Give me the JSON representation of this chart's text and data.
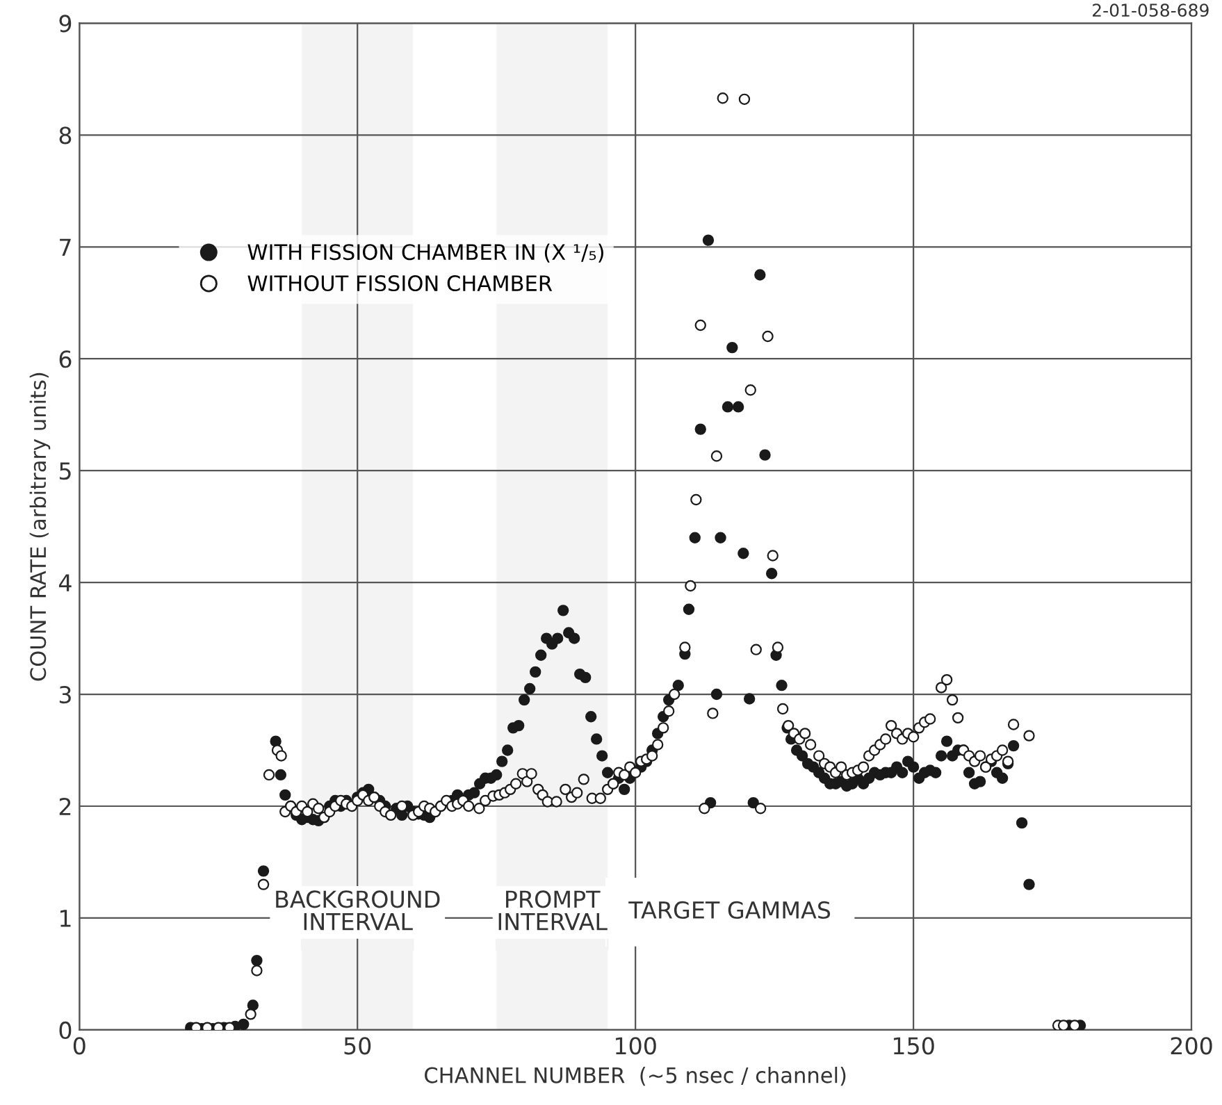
{
  "chart_data": {
    "type": "scatter",
    "xlabel": "CHANNEL NUMBER  (~5 nsec / channel)",
    "ylabel": "COUNT RATE (arbitrary units)",
    "xlim": [
      0,
      200
    ],
    "xticks": [
      0,
      50,
      100,
      150,
      200
    ],
    "ylim": [
      0,
      9
    ],
    "yticks": [
      0,
      1,
      2,
      3,
      4,
      5,
      6,
      7,
      8,
      9
    ],
    "grid": true,
    "legend": "top left",
    "marker": "circle",
    "series": [
      {
        "name": "WITH FISSION CHAMBER IN (X ¹/₅)",
        "color": "#1a1a1a",
        "x": [
          20,
          22,
          24,
          26,
          28,
          29.5,
          31.2,
          31.9,
          33.1,
          35.3,
          36.2,
          37,
          38,
          39,
          40,
          41,
          42,
          43,
          44,
          45,
          46,
          47,
          48,
          50,
          51,
          52,
          53,
          54,
          55,
          57,
          58,
          59,
          60,
          61,
          62,
          63,
          64,
          65,
          67,
          68,
          70,
          71,
          72,
          73,
          74,
          75,
          76,
          77,
          78,
          79,
          80,
          81,
          82,
          83,
          84,
          85,
          86,
          87,
          88,
          89,
          90,
          91,
          92,
          93,
          94,
          95,
          96,
          97,
          98,
          99,
          101,
          102,
          103,
          104,
          105,
          106,
          107.7,
          108.9,
          109.6,
          110.7,
          111.7,
          113.1,
          113.5,
          114.6,
          115.3,
          116.6,
          117.4,
          118.5,
          119.4,
          120.5,
          121.2,
          122.4,
          123.3,
          124.5,
          125.3,
          126.3,
          127.3,
          128,
          129,
          130,
          131,
          132,
          133,
          134,
          135,
          136,
          137,
          138,
          139,
          140,
          141,
          142,
          143,
          144,
          145,
          146,
          147,
          148,
          149,
          150,
          151,
          152,
          153,
          154,
          155,
          156,
          157,
          158,
          159,
          160,
          161,
          162,
          163,
          164,
          165,
          166,
          167,
          168,
          169.5,
          170.8,
          178,
          180
        ],
        "values": [
          0.02,
          0.01,
          0.01,
          0.02,
          0.03,
          0.05,
          0.22,
          0.62,
          1.42,
          2.58,
          2.28,
          2.1,
          2.0,
          1.92,
          1.88,
          1.9,
          1.88,
          1.87,
          1.9,
          2.0,
          2.05,
          2.0,
          2.05,
          2.08,
          2.12,
          2.15,
          2.08,
          2.05,
          2.0,
          1.98,
          1.92,
          2.0,
          1.95,
          1.93,
          1.92,
          1.9,
          1.95,
          2.0,
          2.05,
          2.1,
          2.1,
          2.12,
          2.2,
          2.25,
          2.25,
          2.28,
          2.4,
          2.5,
          2.7,
          2.72,
          2.95,
          3.05,
          3.2,
          3.35,
          3.5,
          3.45,
          3.5,
          3.75,
          3.55,
          3.5,
          3.18,
          3.15,
          2.8,
          2.6,
          2.45,
          2.3,
          2.2,
          2.25,
          2.15,
          2.25,
          2.35,
          2.4,
          2.5,
          2.65,
          2.8,
          2.95,
          3.08,
          3.36,
          3.76,
          4.4,
          5.37,
          7.06,
          2.03,
          3.0,
          4.4,
          5.57,
          6.1,
          5.57,
          4.26,
          2.96,
          2.03,
          6.75,
          5.14,
          4.08,
          3.35,
          3.08,
          2.7,
          2.6,
          2.5,
          2.45,
          2.38,
          2.35,
          2.3,
          2.25,
          2.2,
          2.2,
          2.22,
          2.18,
          2.2,
          2.25,
          2.2,
          2.25,
          2.3,
          2.28,
          2.3,
          2.3,
          2.35,
          2.3,
          2.4,
          2.35,
          2.25,
          2.3,
          2.32,
          2.3,
          2.45,
          2.58,
          2.45,
          2.5,
          2.5,
          2.3,
          2.2,
          2.22,
          2.35,
          2.4,
          2.3,
          2.25,
          2.38,
          2.54,
          1.85,
          1.3,
          0.04,
          0.04
        ]
      },
      {
        "name": "WITHOUT FISSION CHAMBER",
        "color": "#ffffff",
        "x": [
          21,
          23,
          25,
          27,
          30.8,
          31.9,
          33.1,
          34.1,
          35.6,
          36.3,
          37,
          38,
          39,
          40,
          41,
          42,
          43,
          44,
          45,
          46,
          47,
          48,
          49,
          50,
          51,
          52,
          53,
          54,
          55,
          56,
          58,
          60,
          61,
          62,
          63,
          64,
          65,
          66,
          67,
          68,
          69,
          70,
          71.9,
          73,
          74.4,
          75.5,
          76.5,
          77.5,
          78.5,
          79.7,
          80.5,
          81.3,
          82.5,
          83.3,
          84.2,
          85.8,
          87.4,
          88.5,
          89.5,
          90.7,
          92.2,
          93.7,
          95,
          96,
          97,
          98,
          99,
          100,
          101,
          102,
          103,
          104,
          105,
          106,
          107,
          108.9,
          109.9,
          110.9,
          111.7,
          112.4,
          113.9,
          114.6,
          115.7,
          119.6,
          120.7,
          121.7,
          122.5,
          123.8,
          124.7,
          125.6,
          126.5,
          127.5,
          128.5,
          129.5,
          130.5,
          131.5,
          133,
          134,
          135,
          136,
          137,
          138,
          139,
          140,
          141,
          142,
          143,
          144,
          145,
          146,
          147,
          148,
          149,
          150,
          151,
          152,
          153,
          155,
          156,
          157,
          158,
          159,
          160,
          161,
          162,
          163,
          164,
          165,
          166,
          167,
          168,
          170.8,
          176,
          177,
          179
        ],
        "values": [
          0.02,
          0.02,
          0.02,
          0.02,
          0.14,
          0.53,
          1.3,
          2.28,
          2.5,
          2.45,
          1.95,
          2.0,
          1.95,
          2.0,
          1.95,
          2.02,
          1.98,
          1.9,
          1.95,
          2.0,
          2.05,
          2.02,
          2.0,
          2.05,
          2.1,
          2.05,
          2.08,
          2.0,
          1.95,
          1.92,
          2.0,
          1.92,
          1.95,
          2.0,
          1.98,
          1.95,
          2.0,
          2.05,
          2.0,
          2.02,
          2.05,
          2.0,
          1.98,
          2.05,
          2.09,
          2.1,
          2.12,
          2.15,
          2.2,
          2.29,
          2.22,
          2.29,
          2.15,
          2.1,
          2.04,
          2.04,
          2.15,
          2.08,
          2.12,
          2.24,
          2.07,
          2.07,
          2.15,
          2.2,
          2.3,
          2.28,
          2.35,
          2.3,
          2.4,
          2.42,
          2.45,
          2.55,
          2.7,
          2.85,
          3.0,
          3.42,
          3.97,
          4.74,
          6.3,
          1.98,
          2.83,
          5.13,
          8.33,
          8.32,
          5.72,
          3.4,
          1.98,
          6.2,
          4.24,
          3.42,
          2.87,
          2.72,
          2.65,
          2.6,
          2.65,
          2.55,
          2.45,
          2.38,
          2.35,
          2.3,
          2.35,
          2.28,
          2.3,
          2.32,
          2.35,
          2.45,
          2.5,
          2.55,
          2.6,
          2.72,
          2.65,
          2.6,
          2.65,
          2.62,
          2.7,
          2.75,
          2.78,
          3.06,
          3.13,
          2.95,
          2.79,
          2.5,
          2.45,
          2.4,
          2.45,
          2.35,
          2.42,
          2.45,
          2.5,
          2.4,
          2.73,
          2.63,
          0.04,
          0.04,
          0.04
        ]
      }
    ],
    "bands": [
      {
        "axis": "x",
        "from": 40,
        "to": 60,
        "label": "BACKGROUND\nINTERVAL",
        "color": "#f3f3f3"
      },
      {
        "axis": "x",
        "from": 75,
        "to": 95,
        "label": "PROMPT\nINTERVAL",
        "color": "#f3f3f3"
      }
    ],
    "annotations": [
      "TARGET GAMMAS",
      "2-01-058-689"
    ]
  }
}
